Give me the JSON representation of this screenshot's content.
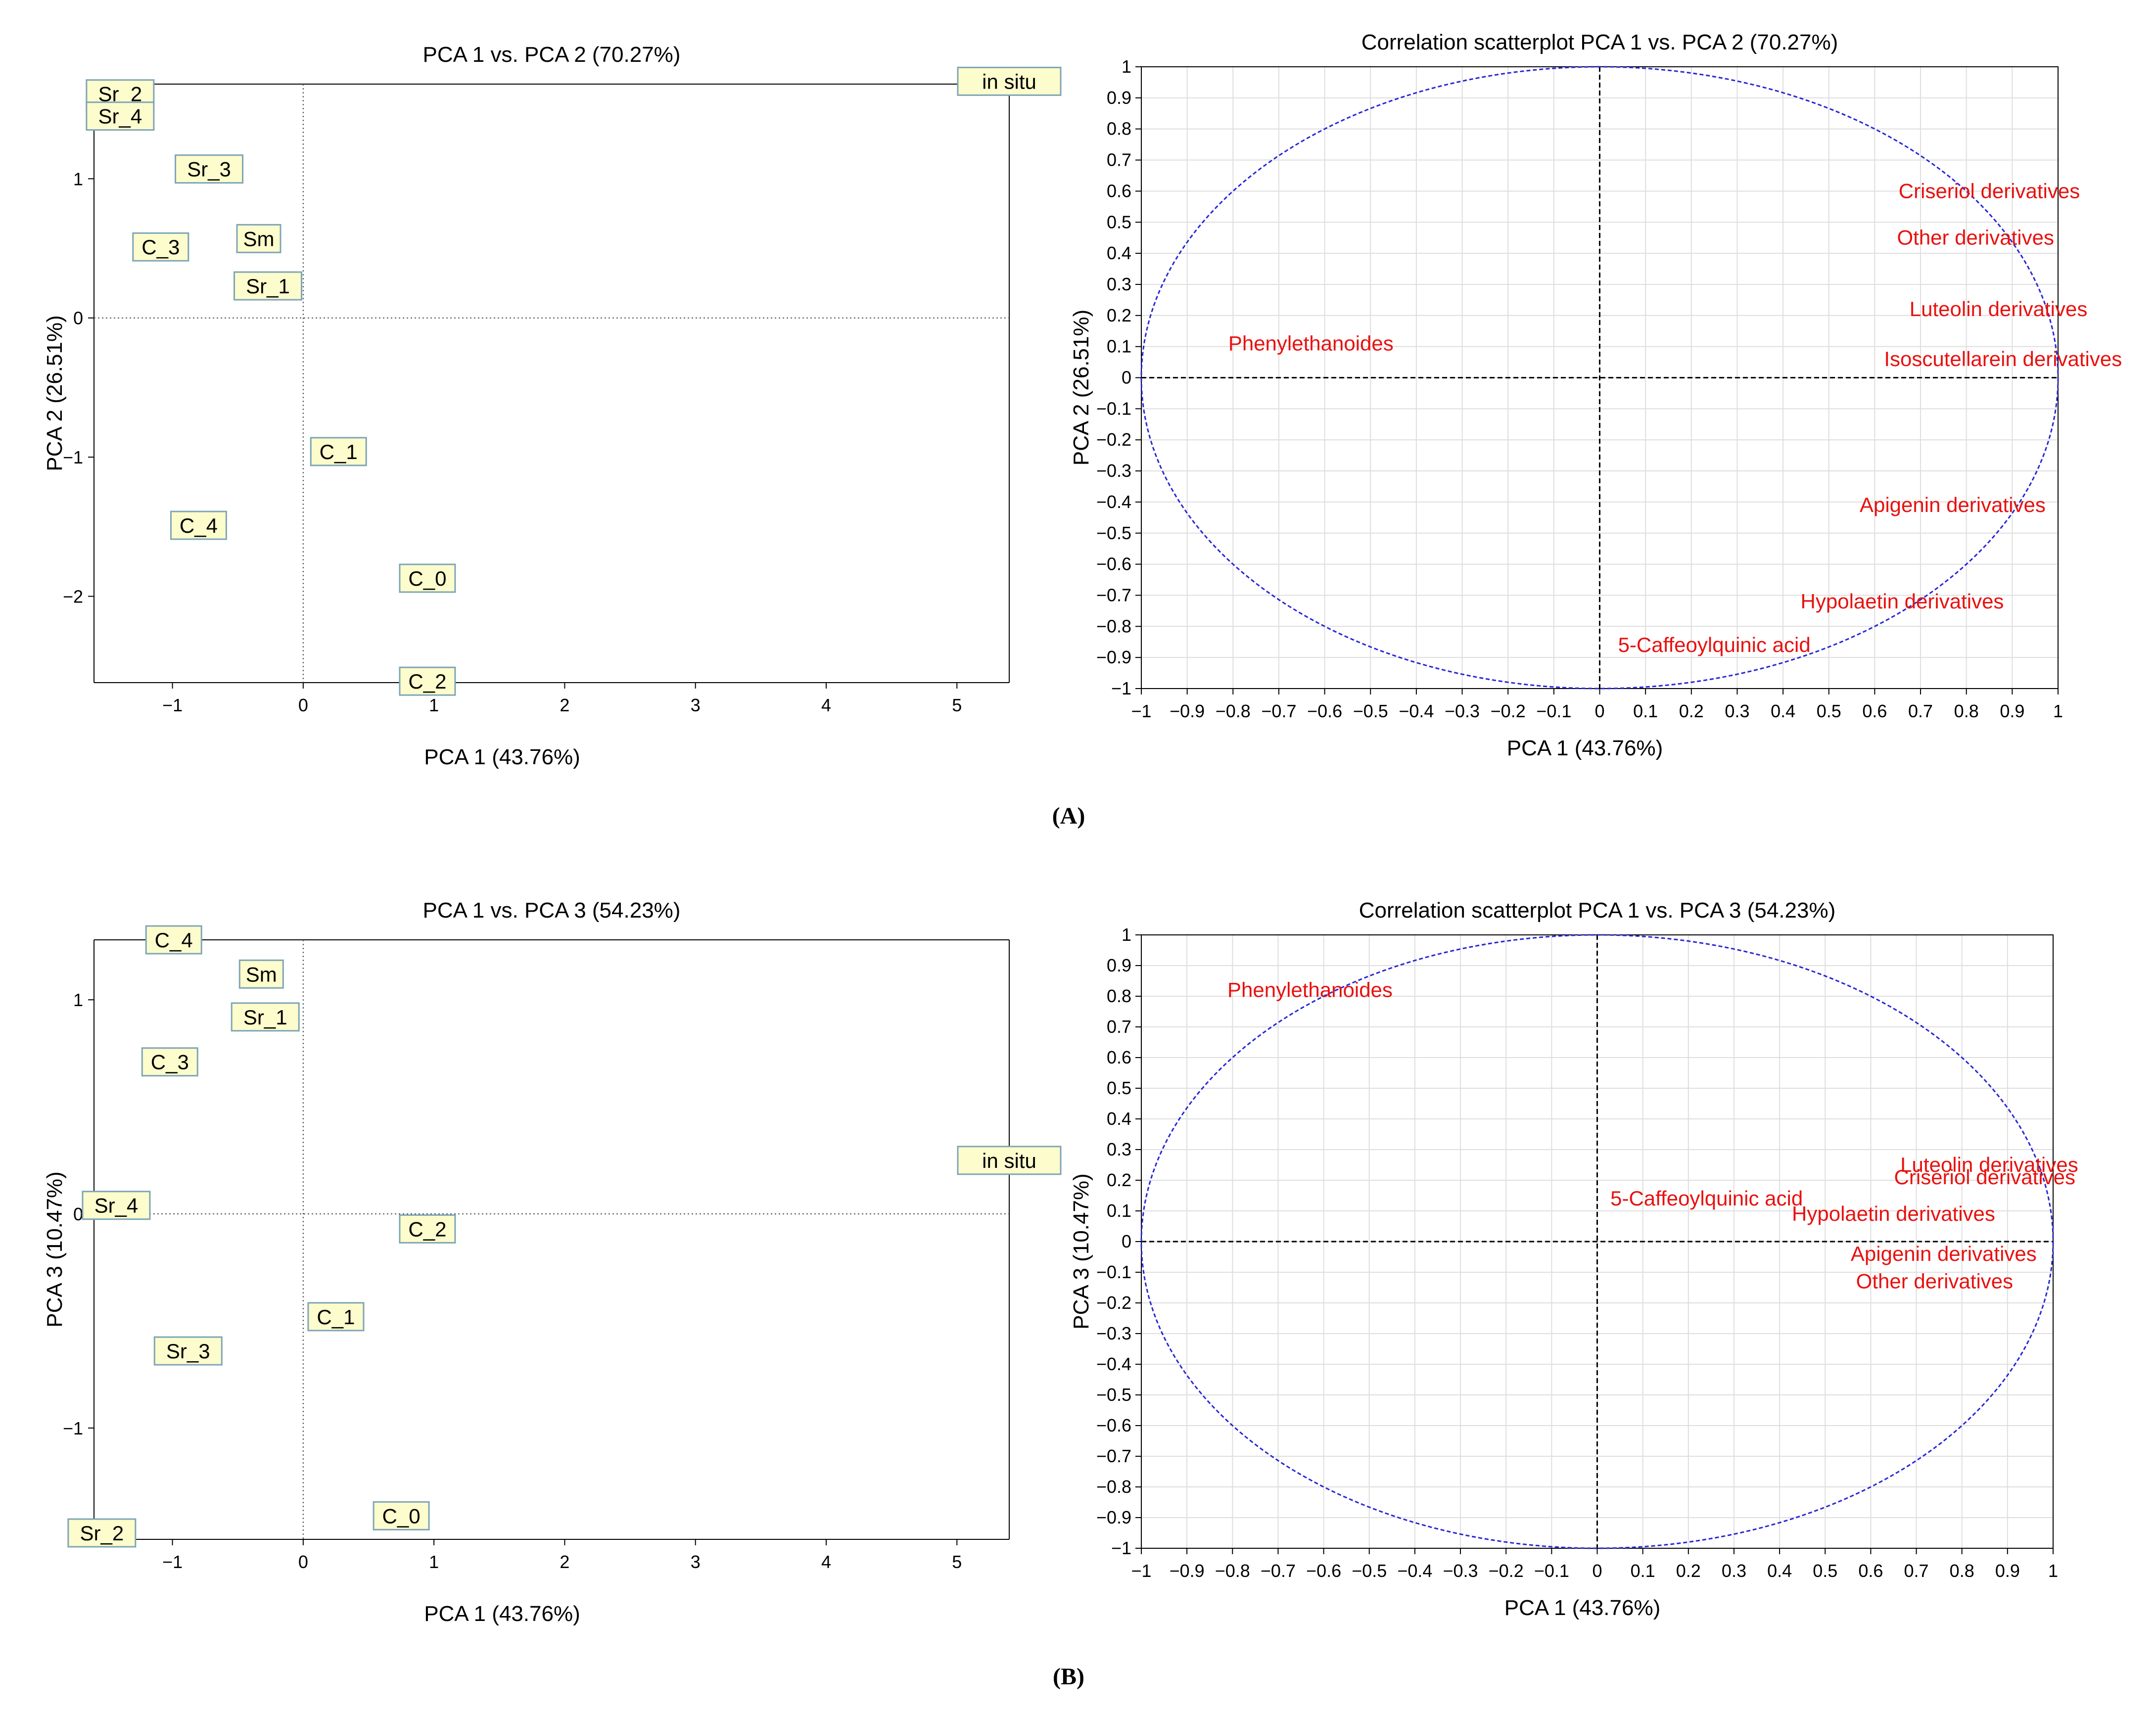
{
  "panel_labels": [
    "(A)",
    "(B)"
  ],
  "colors": {
    "box_fill": "#fdfccc",
    "box_stroke": "#7ea5b7",
    "variable_text": "#e8110f",
    "circle": "#2727d6",
    "grid": "#dedede"
  },
  "chart_data": [
    {
      "type": "scatter",
      "title": "PCA 1 vs. PCA 2 (70.27%)",
      "xlabel": "PCA 1 (43.76%)",
      "ylabel": "PCA  2 (26.51%)",
      "xlim": [
        -1.6,
        5.4
      ],
      "ylim": [
        -2.62,
        1.68
      ],
      "xticks": [
        "−1",
        "0",
        "1",
        "2",
        "3",
        "4",
        "5"
      ],
      "xtick_values": [
        -1,
        0,
        1,
        2,
        3,
        4,
        5
      ],
      "yticks": [
        "1",
        "0",
        "−1",
        "−2"
      ],
      "ytick_values": [
        1,
        0,
        -1,
        -2
      ],
      "points": [
        {
          "label": "Sr_2",
          "x": -1.4,
          "y": 1.61
        },
        {
          "label": "Sr_4",
          "x": -1.4,
          "y": 1.45
        },
        {
          "label": "in situ",
          "x": 5.4,
          "y": 1.7
        },
        {
          "label": "Sr_3",
          "x": -0.72,
          "y": 1.07
        },
        {
          "label": "Sm",
          "x": -0.34,
          "y": 0.57
        },
        {
          "label": "C_3",
          "x": -1.09,
          "y": 0.51
        },
        {
          "label": "Sr_1",
          "x": -0.27,
          "y": 0.23
        },
        {
          "label": "C_1",
          "x": 0.27,
          "y": -0.96
        },
        {
          "label": "C_4",
          "x": -0.8,
          "y": -1.49
        },
        {
          "label": "C_0",
          "x": 0.95,
          "y": -1.87
        },
        {
          "label": "C_2",
          "x": 0.95,
          "y": -2.61
        }
      ]
    },
    {
      "type": "scatter",
      "title": "Correlation scatterplot PCA 1 vs. PCA 2 (70.27%)",
      "xlabel": "PCA 1 (43.76%)",
      "ylabel": "PCA  2 (26.51%)",
      "xlim": [
        -1,
        1
      ],
      "ylim": [
        -1,
        1
      ],
      "ticks": [
        "−1",
        "−0.9",
        "−0.8",
        "−0.7",
        "−0.6",
        "−0.5",
        "−0.4",
        "−0.3",
        "−0.2",
        "−0.1",
        "0",
        "0.1",
        "0.2",
        "0.3",
        "0.4",
        "0.5",
        "0.6",
        "0.7",
        "0.8",
        "0.9",
        "1"
      ],
      "yticks": [
        "1",
        "0.9",
        "0.8",
        "0.7",
        "0.6",
        "0.5",
        "0.4",
        "0.3",
        "0.2",
        "0.1",
        "0",
        "−0.1",
        "−0.2",
        "−0.3",
        "−0.4",
        "−0.5",
        "−0.6",
        "−0.7",
        "−0.8",
        "−0.9",
        "−1"
      ],
      "grid": true,
      "unit_circle": true,
      "variables": [
        {
          "label": "Criseriol derivatives",
          "x": 0.85,
          "y": 0.6
        },
        {
          "label": "Other derivatives",
          "x": 0.82,
          "y": 0.45
        },
        {
          "label": "Luteolin derivatives",
          "x": 0.87,
          "y": 0.22
        },
        {
          "label": "Isoscutellarein derivatives",
          "x": 0.88,
          "y": 0.06
        },
        {
          "label": "Phenylethanoides",
          "x": -0.63,
          "y": 0.11
        },
        {
          "label": "Apigenin derivatives",
          "x": 0.77,
          "y": -0.41
        },
        {
          "label": "Hypolaetin derivatives",
          "x": 0.66,
          "y": -0.72
        },
        {
          "label": "5-Caffeoylquinic acid",
          "x": 0.25,
          "y": -0.86
        }
      ]
    },
    {
      "type": "scatter",
      "title": "PCA 1 vs. PCA 3 (54.23%)",
      "xlabel": "PCA 1 (43.76%)",
      "ylabel": "PCA  3 (10.47%)",
      "xlim": [
        -1.6,
        5.4
      ],
      "ylim": [
        -1.52,
        1.28
      ],
      "xticks": [
        "−1",
        "0",
        "1",
        "2",
        "3",
        "4",
        "5"
      ],
      "xtick_values": [
        -1,
        0,
        1,
        2,
        3,
        4,
        5
      ],
      "yticks": [
        "1",
        "0",
        "−1"
      ],
      "ytick_values": [
        1,
        0,
        -1
      ],
      "points": [
        {
          "label": "C_4",
          "x": -0.99,
          "y": 1.28
        },
        {
          "label": "Sm",
          "x": -0.32,
          "y": 1.12
        },
        {
          "label": "Sr_1",
          "x": -0.29,
          "y": 0.92
        },
        {
          "label": "C_3",
          "x": -1.02,
          "y": 0.71
        },
        {
          "label": "in situ",
          "x": 5.4,
          "y": 0.25
        },
        {
          "label": "Sr_4",
          "x": -1.43,
          "y": 0.04
        },
        {
          "label": "C_2",
          "x": 0.95,
          "y": -0.07
        },
        {
          "label": "C_1",
          "x": 0.25,
          "y": -0.48
        },
        {
          "label": "Sr_3",
          "x": -0.88,
          "y": -0.64
        },
        {
          "label": "C_0",
          "x": 0.75,
          "y": -1.41
        },
        {
          "label": "Sr_2",
          "x": -1.54,
          "y": -1.49
        }
      ]
    },
    {
      "type": "scatter",
      "title": "Correlation scatterplot PCA 1 vs. PCA 3 (54.23%)",
      "xlabel": "PCA 1 (43.76%)",
      "ylabel": "PCA  3 (10.47%)",
      "xlim": [
        -1,
        1
      ],
      "ylim": [
        -1,
        1
      ],
      "ticks": [
        "−1",
        "−0.9",
        "−0.8",
        "−0.7",
        "−0.6",
        "−0.5",
        "−0.4",
        "−0.3",
        "−0.2",
        "−0.1",
        "0",
        "0.1",
        "0.2",
        "0.3",
        "0.4",
        "0.5",
        "0.6",
        "0.7",
        "0.8",
        "0.9",
        "1"
      ],
      "yticks": [
        "1",
        "0.9",
        "0.8",
        "0.7",
        "0.6",
        "0.5",
        "0.4",
        "0.3",
        "0.2",
        "0.1",
        "0",
        "−0.1",
        "−0.2",
        "−0.3",
        "−0.4",
        "−0.5",
        "−0.6",
        "−0.7",
        "−0.8",
        "−0.9",
        "−1"
      ],
      "grid": true,
      "unit_circle": true,
      "variables": [
        {
          "label": "Phenylethanoides",
          "x": -0.63,
          "y": 0.82
        },
        {
          "label": "Luteolin derivatives",
          "x": 0.86,
          "y": 0.25
        },
        {
          "label": "Criseriol derivatives",
          "x": 0.85,
          "y": 0.21
        },
        {
          "label": "5-Caffeoylquinic acid",
          "x": 0.24,
          "y": 0.14
        },
        {
          "label": "Hypolaetin derivatives",
          "x": 0.65,
          "y": 0.09
        },
        {
          "label": "Apigenin derivatives",
          "x": 0.76,
          "y": -0.04
        },
        {
          "label": "Other derivatives",
          "x": 0.74,
          "y": -0.13
        }
      ]
    }
  ]
}
